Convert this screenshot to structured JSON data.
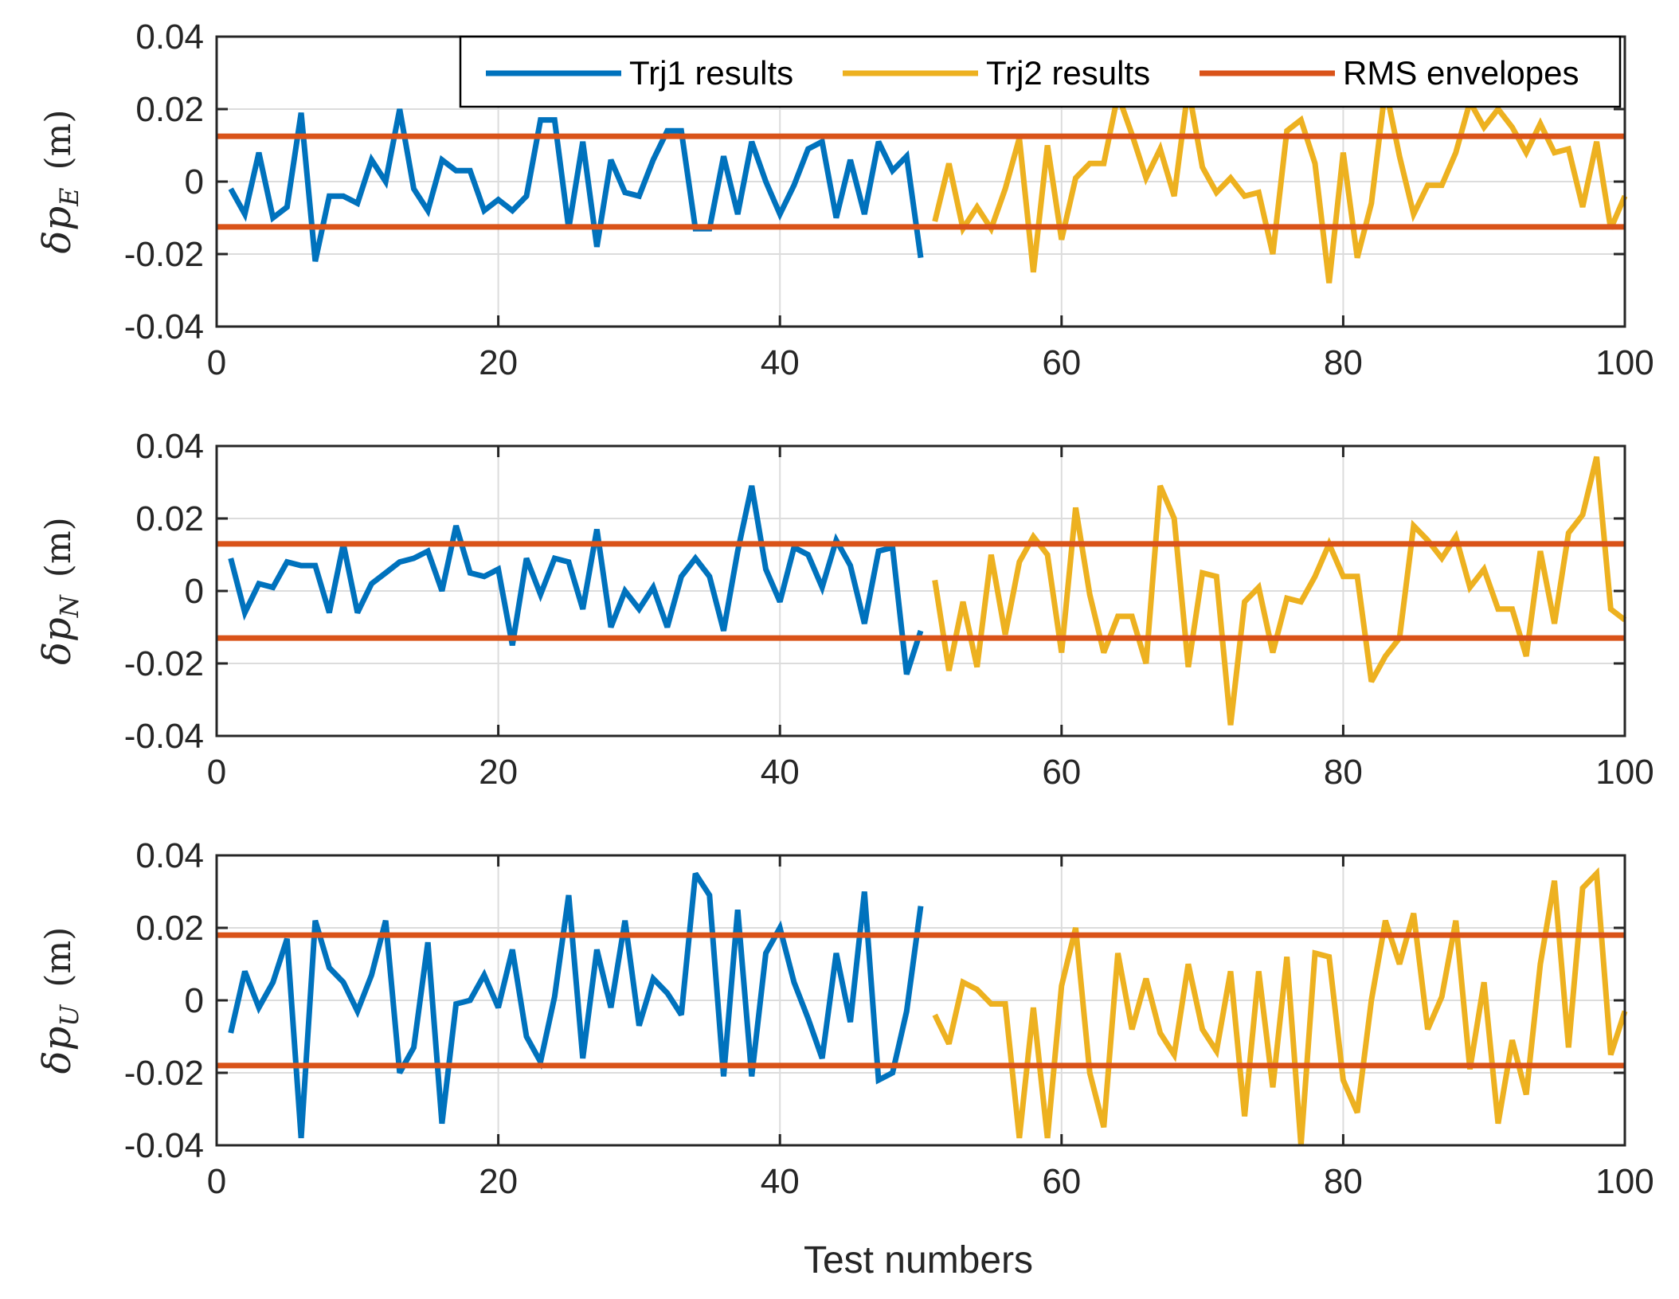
{
  "colors": {
    "trj1": "#0072BD",
    "trj2": "#EDB120",
    "rms": "#D95319",
    "grid": "#dcdcdc",
    "axis": "#262626"
  },
  "legend": {
    "trj1": "Trj1 results",
    "trj2": "Trj2 results",
    "rms": "RMS envelopes"
  },
  "xlabel": "Test numbers",
  "chart_data": [
    {
      "type": "line",
      "ylabel": {
        "symbol": "δ",
        "var": "p",
        "sub": "E",
        "unit": "(m)"
      },
      "xlim": [
        0,
        100
      ],
      "ylim": [
        -0.04,
        0.04
      ],
      "xticks": [
        "0",
        "20",
        "40",
        "60",
        "80",
        "100"
      ],
      "yticks": [
        "0.04",
        "0.02",
        "0",
        "-0.02",
        "-0.04"
      ],
      "grid": true,
      "rms": 0.0125,
      "series": [
        {
          "name": "Trj1 results",
          "x_start": 1,
          "values": [
            -0.002,
            -0.009,
            0.008,
            -0.01,
            -0.007,
            0.019,
            -0.022,
            -0.004,
            -0.004,
            -0.006,
            0.006,
            0.0,
            0.02,
            -0.002,
            -0.008,
            0.006,
            0.003,
            0.003,
            -0.008,
            -0.005,
            -0.008,
            -0.004,
            0.017,
            0.017,
            -0.013,
            0.011,
            -0.018,
            0.006,
            -0.003,
            -0.004,
            0.006,
            0.014,
            0.014,
            -0.013,
            -0.013,
            0.007,
            -0.009,
            0.011,
            0.0,
            -0.009,
            -0.001,
            0.009,
            0.011,
            -0.01,
            0.006,
            -0.009,
            0.011,
            0.003,
            0.007,
            -0.021
          ]
        },
        {
          "name": "Trj2 results",
          "x_start": 51,
          "values": [
            -0.011,
            0.005,
            -0.013,
            -0.007,
            -0.013,
            -0.002,
            0.012,
            -0.025,
            0.01,
            -0.016,
            0.001,
            0.005,
            0.005,
            0.024,
            0.013,
            0.001,
            0.009,
            -0.004,
            0.026,
            0.004,
            -0.003,
            0.001,
            -0.004,
            -0.003,
            -0.02,
            0.014,
            0.017,
            0.005,
            -0.028,
            0.008,
            -0.021,
            -0.006,
            0.026,
            0.007,
            -0.009,
            -0.001,
            -0.001,
            0.008,
            0.022,
            0.015,
            0.02,
            0.015,
            0.008,
            0.016,
            0.008,
            0.009,
            -0.007,
            0.011,
            -0.013,
            -0.004
          ]
        }
      ]
    },
    {
      "type": "line",
      "ylabel": {
        "symbol": "δ",
        "var": "p",
        "sub": "N",
        "unit": "(m)"
      },
      "xlim": [
        0,
        100
      ],
      "ylim": [
        -0.04,
        0.04
      ],
      "xticks": [
        "0",
        "20",
        "40",
        "60",
        "80",
        "100"
      ],
      "yticks": [
        "0.04",
        "0.02",
        "0",
        "-0.02",
        "-0.04"
      ],
      "grid": true,
      "rms": 0.013,
      "series": [
        {
          "name": "Trj1 results",
          "x_start": 1,
          "values": [
            0.009,
            -0.006,
            0.002,
            0.001,
            0.008,
            0.007,
            0.007,
            -0.006,
            0.013,
            -0.006,
            0.002,
            0.005,
            0.008,
            0.009,
            0.011,
            0.0,
            0.018,
            0.005,
            0.004,
            0.006,
            -0.015,
            0.009,
            -0.001,
            0.009,
            0.008,
            -0.005,
            0.017,
            -0.01,
            0.0,
            -0.005,
            0.001,
            -0.01,
            0.004,
            0.009,
            0.004,
            -0.011,
            0.011,
            0.029,
            0.006,
            -0.003,
            0.012,
            0.01,
            0.001,
            0.014,
            0.007,
            -0.009,
            0.011,
            0.012,
            -0.023,
            -0.011
          ]
        },
        {
          "name": "Trj2 results",
          "x_start": 51,
          "values": [
            0.003,
            -0.022,
            -0.003,
            -0.021,
            0.01,
            -0.012,
            0.008,
            0.015,
            0.01,
            -0.017,
            0.023,
            -0.001,
            -0.017,
            -0.007,
            -0.007,
            -0.02,
            0.029,
            0.02,
            -0.021,
            0.005,
            0.004,
            -0.037,
            -0.003,
            0.001,
            -0.017,
            -0.002,
            -0.003,
            0.004,
            0.013,
            0.004,
            0.004,
            -0.025,
            -0.018,
            -0.013,
            0.018,
            0.014,
            0.009,
            0.015,
            0.001,
            0.006,
            -0.005,
            -0.005,
            -0.018,
            0.011,
            -0.009,
            0.016,
            0.021,
            0.037,
            -0.005,
            -0.008
          ]
        }
      ]
    },
    {
      "type": "line",
      "ylabel": {
        "symbol": "δ",
        "var": "p",
        "sub": "U",
        "unit": "(m)"
      },
      "xlim": [
        0,
        100
      ],
      "ylim": [
        -0.04,
        0.04
      ],
      "xticks": [
        "0",
        "20",
        "40",
        "60",
        "80",
        "100"
      ],
      "yticks": [
        "0.04",
        "0.02",
        "0",
        "-0.02",
        "-0.04"
      ],
      "grid": true,
      "rms": 0.018,
      "series": [
        {
          "name": "Trj1 results",
          "x_start": 1,
          "values": [
            -0.009,
            0.008,
            -0.002,
            0.005,
            0.017,
            -0.038,
            0.022,
            0.009,
            0.005,
            -0.003,
            0.007,
            0.022,
            -0.02,
            -0.013,
            0.016,
            -0.034,
            -0.001,
            0.0,
            0.007,
            -0.002,
            0.014,
            -0.01,
            -0.017,
            0.001,
            0.029,
            -0.016,
            0.014,
            -0.002,
            0.022,
            -0.007,
            0.006,
            0.002,
            -0.004,
            0.035,
            0.029,
            -0.021,
            0.025,
            -0.021,
            0.013,
            0.02,
            0.005,
            -0.005,
            -0.016,
            0.013,
            -0.006,
            0.03,
            -0.022,
            -0.02,
            -0.003,
            0.026
          ]
        },
        {
          "name": "Trj2 results",
          "x_start": 51,
          "values": [
            -0.004,
            -0.012,
            0.005,
            0.003,
            -0.001,
            -0.001,
            -0.038,
            -0.002,
            -0.038,
            0.004,
            0.02,
            -0.02,
            -0.035,
            0.013,
            -0.008,
            0.006,
            -0.009,
            -0.015,
            0.01,
            -0.008,
            -0.014,
            0.008,
            -0.032,
            0.008,
            -0.024,
            0.012,
            -0.04,
            0.013,
            0.012,
            -0.022,
            -0.031,
            0.0,
            0.022,
            0.01,
            0.024,
            -0.008,
            0.001,
            0.022,
            -0.019,
            0.005,
            -0.034,
            -0.011,
            -0.026,
            0.01,
            0.033,
            -0.013,
            0.031,
            0.035,
            -0.015,
            -0.003
          ]
        }
      ]
    }
  ]
}
